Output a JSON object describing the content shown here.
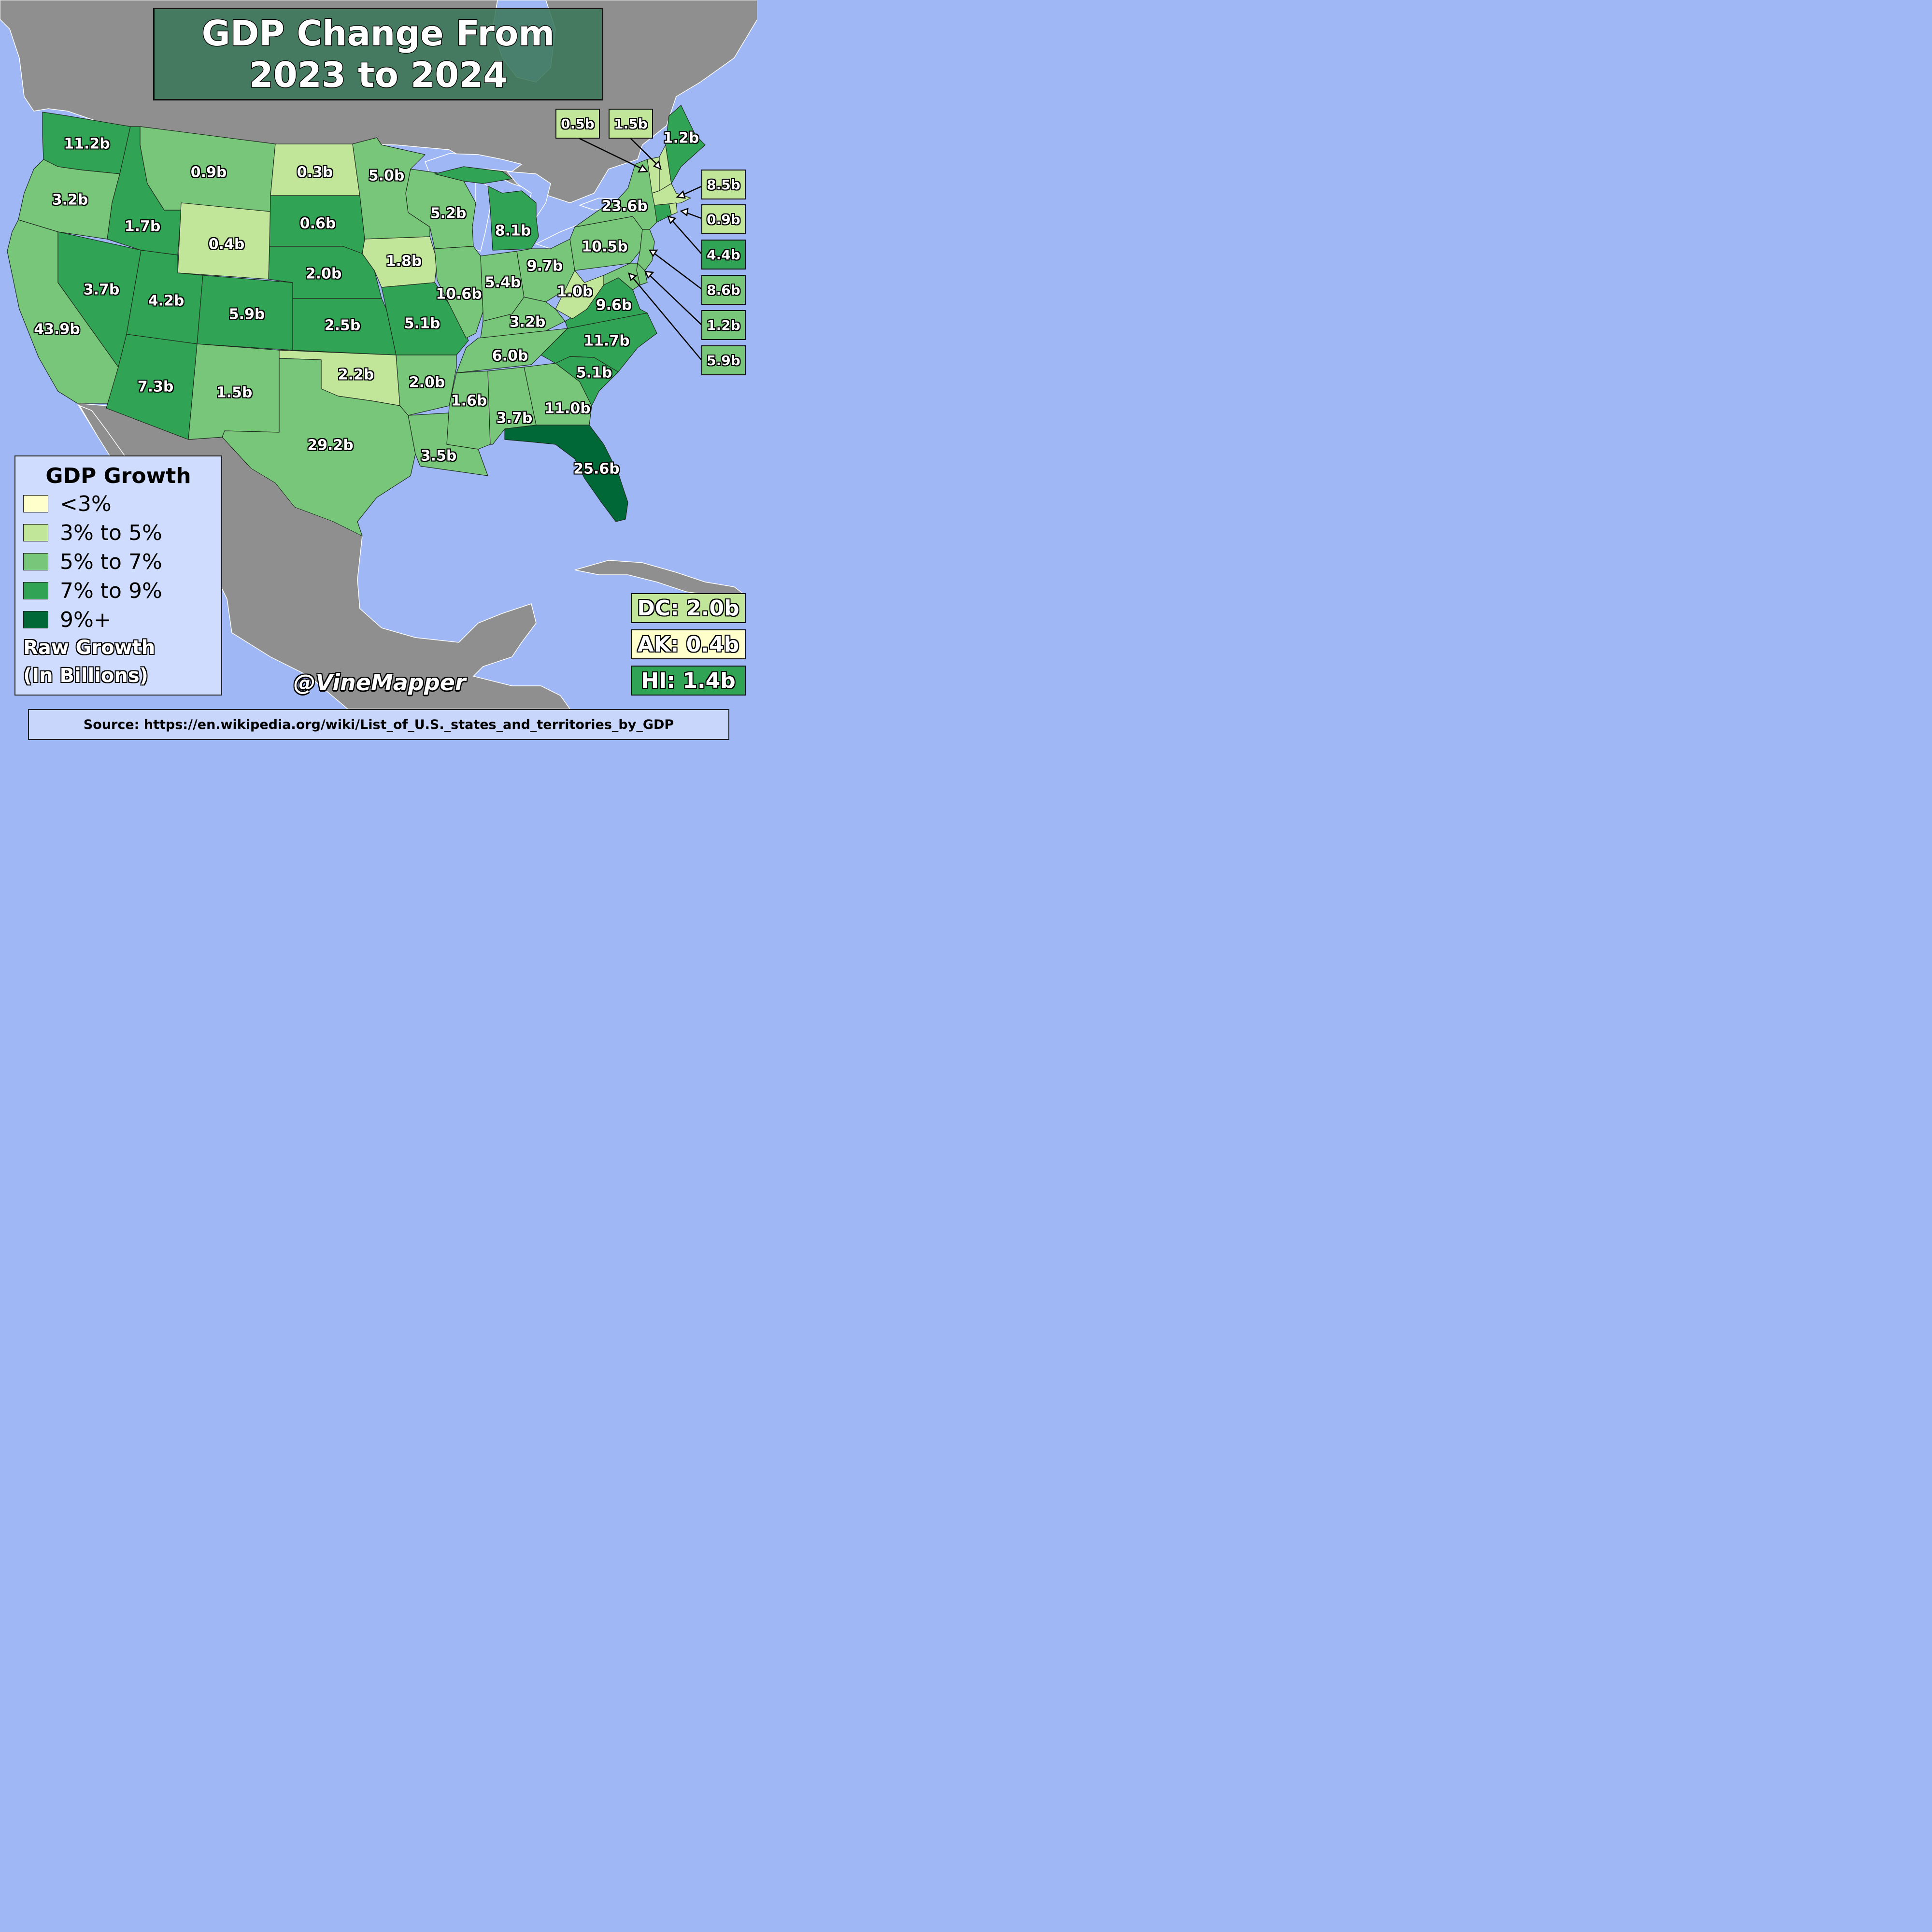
{
  "title": {
    "line1": "GDP Change From",
    "line2": "2023 to 2024"
  },
  "colors": {
    "lt3": "#ffffcc",
    "3to5": "#c2e699",
    "5to7": "#78c679",
    "7to9": "#31a354",
    "9plus": "#006837",
    "ocean": "#9fb8f5",
    "land": "#8f8f8f"
  },
  "legend": {
    "title": "GDP Growth",
    "items": [
      {
        "label": "<3%",
        "color": "#ffffcc"
      },
      {
        "label": "3% to 5%",
        "color": "#c2e699"
      },
      {
        "label": "5% to 7%",
        "color": "#78c679"
      },
      {
        "label": "7% to 9%",
        "color": "#31a354"
      },
      {
        "label": "9%+",
        "color": "#006837"
      }
    ],
    "note_line1": "Raw Growth",
    "note_line2": "(In Billions)"
  },
  "states": {
    "WA": {
      "value": "11.2b",
      "bin": "7to9"
    },
    "OR": {
      "value": "3.2b",
      "bin": "5to7"
    },
    "CA": {
      "value": "43.9b",
      "bin": "5to7"
    },
    "NV": {
      "value": "3.7b",
      "bin": "7to9"
    },
    "ID": {
      "value": "1.7b",
      "bin": "7to9"
    },
    "MT": {
      "value": "0.9b",
      "bin": "5to7"
    },
    "WY": {
      "value": "0.4b",
      "bin": "3to5"
    },
    "UT": {
      "value": "4.2b",
      "bin": "7to9"
    },
    "AZ": {
      "value": "7.3b",
      "bin": "7to9"
    },
    "CO": {
      "value": "5.9b",
      "bin": "7to9"
    },
    "NM": {
      "value": "1.5b",
      "bin": "5to7"
    },
    "ND": {
      "value": "0.3b",
      "bin": "3to5"
    },
    "SD": {
      "value": "0.6b",
      "bin": "7to9"
    },
    "NE": {
      "value": "2.0b",
      "bin": "7to9"
    },
    "KS": {
      "value": "2.5b",
      "bin": "7to9"
    },
    "OK": {
      "value": "2.2b",
      "bin": "3to5"
    },
    "TX": {
      "value": "29.2b",
      "bin": "5to7"
    },
    "MN": {
      "value": "5.0b",
      "bin": "5to7"
    },
    "IA": {
      "value": "1.8b",
      "bin": "3to5"
    },
    "MO": {
      "value": "5.1b",
      "bin": "7to9"
    },
    "AR": {
      "value": "2.0b",
      "bin": "5to7"
    },
    "LA": {
      "value": "3.5b",
      "bin": "5to7"
    },
    "WI": {
      "value": "5.2b",
      "bin": "5to7"
    },
    "IL": {
      "value": "10.6b",
      "bin": "5to7"
    },
    "MI": {
      "value": "8.1b",
      "bin": "7to9"
    },
    "IN": {
      "value": "5.4b",
      "bin": "5to7"
    },
    "OH": {
      "value": "9.7b",
      "bin": "5to7"
    },
    "KY": {
      "value": "3.2b",
      "bin": "5to7"
    },
    "TN": {
      "value": "6.0b",
      "bin": "5to7"
    },
    "MS": {
      "value": "1.6b",
      "bin": "5to7"
    },
    "AL": {
      "value": "3.7b",
      "bin": "5to7"
    },
    "GA": {
      "value": "11.0b",
      "bin": "5to7"
    },
    "FL": {
      "value": "25.6b",
      "bin": "9plus"
    },
    "SC": {
      "value": "5.1b",
      "bin": "7to9"
    },
    "NC": {
      "value": "11.7b",
      "bin": "7to9"
    },
    "VA": {
      "value": "9.6b",
      "bin": "7to9"
    },
    "WV": {
      "value": "1.0b",
      "bin": "3to5"
    },
    "PA": {
      "value": "10.5b",
      "bin": "5to7"
    },
    "NY": {
      "value": "23.6b",
      "bin": "5to7"
    },
    "ME": {
      "value": "1.2b",
      "bin": "7to9"
    },
    "VT": {
      "value": "0.5b",
      "bin": "3to5"
    },
    "NH": {
      "value": "1.5b",
      "bin": "3to5"
    },
    "MA": {
      "value": "8.5b",
      "bin": "3to5"
    },
    "RI": {
      "value": "0.9b",
      "bin": "3to5"
    },
    "CT": {
      "value": "4.4b",
      "bin": "7to9"
    },
    "NJ": {
      "value": "8.6b",
      "bin": "5to7"
    },
    "DE": {
      "value": "1.2b",
      "bin": "5to7"
    },
    "MD": {
      "value": "5.9b",
      "bin": "5to7"
    }
  },
  "extras": [
    {
      "text": "DC: 2.0b",
      "color": "#c2e699"
    },
    {
      "text": "AK: 0.4b",
      "color": "#ffffcc"
    },
    {
      "text": "HI: 1.4b",
      "color": "#31a354"
    }
  ],
  "credit": "@VineMapper",
  "source": "Source: https://en.wikipedia.org/wiki/List_of_U.S._states_and_territories_by_GDP"
}
